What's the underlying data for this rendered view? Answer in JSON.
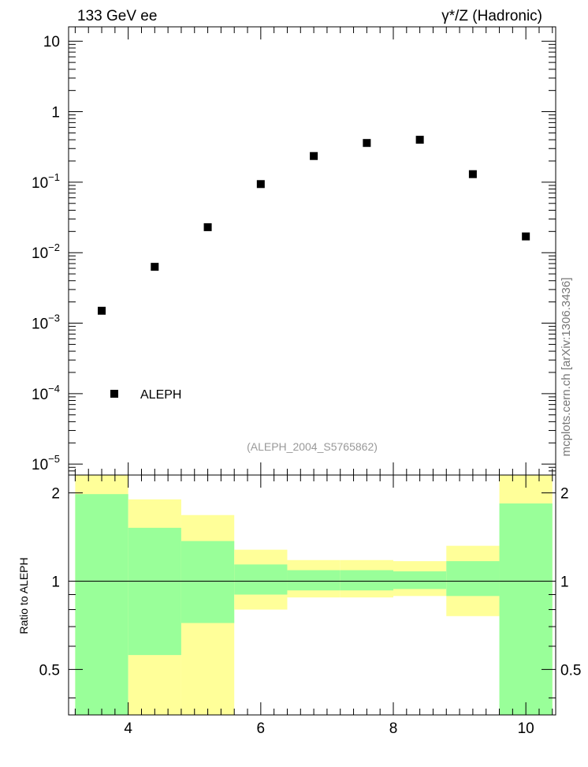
{
  "header": {
    "left_label": "133 GeV ee",
    "right_label": "γ*/Z (Hadronic)"
  },
  "watermark": "mcplots.cern.ch [arXiv:1306.3436]",
  "analysis_id": "(ALEPH_2004_S5765862)",
  "chart_data": [
    {
      "type": "scatter",
      "yscale": "log",
      "xlim": [
        3.1,
        10.45
      ],
      "ylim": [
        7e-06,
        16
      ],
      "xlabel": "",
      "ylabel": "",
      "ytick_labels": [
        {
          "value": 10,
          "base": "10",
          "exp": ""
        },
        {
          "value": 1,
          "base": "1",
          "exp": ""
        },
        {
          "value": 0.1,
          "base": "10",
          "exp": "−1"
        },
        {
          "value": 0.01,
          "base": "10",
          "exp": "−2"
        },
        {
          "value": 0.001,
          "base": "10",
          "exp": "−3"
        },
        {
          "value": 0.0001,
          "base": "10",
          "exp": "−4"
        },
        {
          "value": 1e-05,
          "base": "10",
          "exp": "−5"
        }
      ],
      "legend": {
        "label": "ALEPH",
        "position": "bottom-left"
      },
      "series": [
        {
          "name": "ALEPH",
          "color": "#000000",
          "x": [
            3.6,
            4.4,
            5.2,
            6.0,
            6.8,
            7.6,
            8.4,
            9.2,
            10.0
          ],
          "y": [
            0.0015,
            0.0063,
            0.023,
            0.094,
            0.235,
            0.36,
            0.4,
            0.13,
            0.017
          ]
        }
      ]
    },
    {
      "type": "area",
      "xlim": [
        3.1,
        10.45
      ],
      "ylim": [
        0.35,
        2.3
      ],
      "ylabel": "Ratio to ALEPH",
      "yticks": [
        0.5,
        1,
        2
      ],
      "ytick_labels": [
        "0.5",
        "1",
        "2"
      ],
      "xticks": [
        4,
        6,
        8,
        10
      ],
      "xtick_labels": [
        "4",
        "6",
        "8",
        "10"
      ],
      "reference_line": 1,
      "bins": [
        {
          "lo": 3.2,
          "hi": 4.0,
          "yellow": [
            0.0,
            2.3
          ],
          "green": [
            0.0,
            1.98
          ]
        },
        {
          "lo": 4.0,
          "hi": 4.8,
          "yellow": [
            0.0,
            1.9
          ],
          "green": [
            0.56,
            1.52
          ]
        },
        {
          "lo": 4.8,
          "hi": 5.6,
          "yellow": [
            0.0,
            1.68
          ],
          "green": [
            0.72,
            1.37
          ]
        },
        {
          "lo": 5.6,
          "hi": 6.4,
          "yellow": [
            0.8,
            1.28
          ],
          "green": [
            0.9,
            1.14
          ]
        },
        {
          "lo": 6.4,
          "hi": 7.2,
          "yellow": [
            0.88,
            1.18
          ],
          "green": [
            0.93,
            1.09
          ]
        },
        {
          "lo": 7.2,
          "hi": 8.0,
          "yellow": [
            0.88,
            1.18
          ],
          "green": [
            0.93,
            1.09
          ]
        },
        {
          "lo": 8.0,
          "hi": 8.8,
          "yellow": [
            0.89,
            1.17
          ],
          "green": [
            0.94,
            1.08
          ]
        },
        {
          "lo": 8.8,
          "hi": 9.6,
          "yellow": [
            0.76,
            1.32
          ],
          "green": [
            0.89,
            1.17
          ]
        },
        {
          "lo": 9.6,
          "hi": 10.4,
          "yellow": [
            0.0,
            2.3
          ],
          "green": [
            0.0,
            1.84
          ]
        }
      ],
      "colors": {
        "yellow": "#ffff99",
        "green": "#99ff99"
      }
    }
  ]
}
